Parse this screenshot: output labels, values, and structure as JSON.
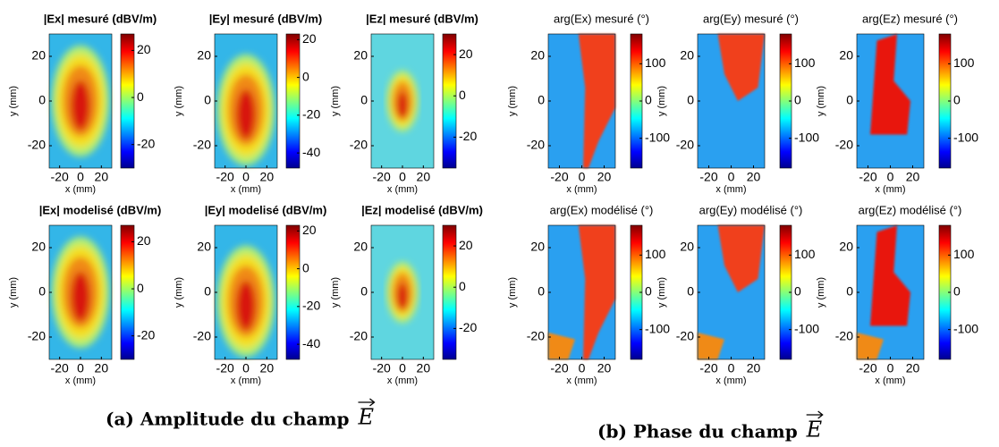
{
  "panels": [
    {
      "caption": "(a) Amplitude du champ",
      "caption_symbol": "E",
      "plots": [
        {
          "title": "|Ex| mesuré (dBV/m)",
          "xlabel": "x (mm)",
          "ylabel": "y (mm)",
          "xlim": [
            -30,
            30
          ],
          "xticks": [
            -20,
            0,
            20
          ],
          "ylim": [
            -30,
            30
          ],
          "yticks": [
            20,
            0,
            -20
          ],
          "clim": [
            -30,
            27
          ],
          "cticks": [
            20,
            0,
            -20
          ]
        },
        {
          "title": "|Ey| mesuré (dBV/m)",
          "xlabel": "x (mm)",
          "ylabel": "y (mm)",
          "xlim": [
            -30,
            30
          ],
          "xticks": [
            -20,
            0,
            20
          ],
          "ylim": [
            -30,
            30
          ],
          "yticks": [
            20,
            0,
            -20
          ],
          "clim": [
            -48,
            23
          ],
          "cticks": [
            20,
            0,
            -20,
            -40
          ]
        },
        {
          "title": "|Ez| mesuré (dBV/m)",
          "xlabel": "x (mm)",
          "ylabel": "y (mm)",
          "xlim": [
            -30,
            30
          ],
          "xticks": [
            -20,
            0,
            20
          ],
          "ylim": [
            -30,
            30
          ],
          "yticks": [
            20,
            0,
            -20
          ],
          "clim": [
            -35,
            30
          ],
          "cticks": [
            20,
            0,
            -20
          ]
        },
        {
          "title": "|Ex| modelisé (dBV/m)",
          "xlabel": "x (mm)",
          "ylabel": "y (mm)",
          "xlim": [
            -30,
            30
          ],
          "xticks": [
            -20,
            0,
            20
          ],
          "ylim": [
            -30,
            30
          ],
          "yticks": [
            20,
            0,
            -20
          ],
          "clim": [
            -30,
            27
          ],
          "cticks": [
            20,
            0,
            -20
          ]
        },
        {
          "title": "|Ey| modelisé (dBV/m)",
          "xlabel": "x (mm)",
          "ylabel": "y (mm)",
          "xlim": [
            -30,
            30
          ],
          "xticks": [
            -20,
            0,
            20
          ],
          "ylim": [
            -30,
            30
          ],
          "yticks": [
            20,
            0,
            -20
          ],
          "clim": [
            -48,
            23
          ],
          "cticks": [
            20,
            0,
            -20,
            -40
          ]
        },
        {
          "title": "|Ez| modelisé (dBV/m)",
          "xlabel": "x (mm)",
          "ylabel": "y (mm)",
          "xlim": [
            -30,
            30
          ],
          "xticks": [
            -20,
            0,
            20
          ],
          "ylim": [
            -30,
            30
          ],
          "yticks": [
            20,
            0,
            -20
          ],
          "clim": [
            -35,
            30
          ],
          "cticks": [
            20,
            0,
            -20
          ]
        }
      ]
    },
    {
      "caption": "(b) Phase du champ",
      "caption_symbol": "E",
      "plots": [
        {
          "title": "arg(Ex) mesuré (°)",
          "xlabel": "x (mm)",
          "ylabel": "y (mm)",
          "xlim": [
            -30,
            30
          ],
          "xticks": [
            -20,
            0,
            20
          ],
          "ylim": [
            -30,
            30
          ],
          "yticks": [
            20,
            0,
            -20
          ],
          "clim": [
            -180,
            180
          ],
          "cticks": [
            100,
            0,
            -100
          ]
        },
        {
          "title": "arg(Ey) mesuré (°)",
          "xlabel": "x (mm)",
          "ylabel": "y (mm)",
          "xlim": [
            -30,
            30
          ],
          "xticks": [
            -20,
            0,
            20
          ],
          "ylim": [
            -30,
            30
          ],
          "yticks": [
            20,
            0,
            -20
          ],
          "clim": [
            -180,
            180
          ],
          "cticks": [
            100,
            0,
            -100
          ]
        },
        {
          "title": "arg(Ez) mesuré (°)",
          "xlabel": "x (mm)",
          "ylabel": "y (mm)",
          "xlim": [
            -30,
            30
          ],
          "xticks": [
            -20,
            0,
            20
          ],
          "ylim": [
            -30,
            30
          ],
          "yticks": [
            20,
            0,
            -20
          ],
          "clim": [
            -180,
            180
          ],
          "cticks": [
            100,
            0,
            -100
          ]
        },
        {
          "title": "arg(Ex) modélisé (°)",
          "xlabel": "x (mm)",
          "ylabel": "y (mm)",
          "xlim": [
            -30,
            30
          ],
          "xticks": [
            -20,
            0,
            20
          ],
          "ylim": [
            -30,
            30
          ],
          "yticks": [
            20,
            0,
            -20
          ],
          "clim": [
            -180,
            180
          ],
          "cticks": [
            100,
            0,
            -100
          ]
        },
        {
          "title": "arg(Ey) modélisé (°)",
          "xlabel": "x (mm)",
          "ylabel": "y (mm)",
          "xlim": [
            -30,
            30
          ],
          "xticks": [
            -20,
            0,
            20
          ],
          "ylim": [
            -30,
            30
          ],
          "yticks": [
            20,
            0,
            -20
          ],
          "clim": [
            -180,
            180
          ],
          "cticks": [
            100,
            0,
            -100
          ]
        },
        {
          "title": "arg(Ez) modélisé (°)",
          "xlabel": "x (mm)",
          "ylabel": "y (mm)",
          "xlim": [
            -30,
            30
          ],
          "xticks": [
            -20,
            0,
            20
          ],
          "ylim": [
            -30,
            30
          ],
          "yticks": [
            20,
            0,
            -20
          ],
          "clim": [
            -180,
            180
          ],
          "cticks": [
            100,
            0,
            -100
          ]
        }
      ]
    }
  ]
}
